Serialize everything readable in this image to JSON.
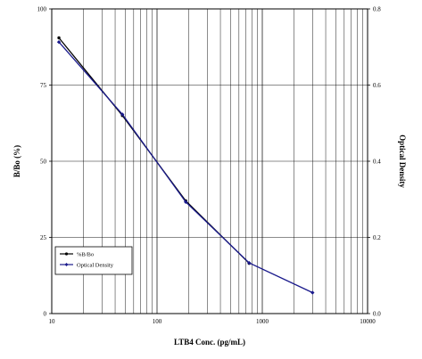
{
  "chart_data": {
    "type": "line",
    "title": "",
    "xlabel": "LTB4 Conc. (pg/mL)",
    "ylabel": "B/Bo (%)",
    "y2label": "Optical Density",
    "x_scale": "log",
    "xlim": [
      10,
      10000
    ],
    "ylim": [
      0,
      100
    ],
    "y2lim": [
      0,
      0.8
    ],
    "x_ticks": [
      "10",
      "100",
      "1000",
      "10000"
    ],
    "y_ticks": [
      "0",
      "25",
      "50",
      "75",
      "100"
    ],
    "y2_ticks": [
      "0.0",
      "0.2",
      "0.4",
      "0.6",
      "0.8"
    ],
    "grid": true,
    "legend_position": "bottom-left",
    "series": [
      {
        "name": "%B/Bo",
        "axis": "left",
        "color": "#000000",
        "x": [
          11.7,
          46.9,
          187.5,
          750
        ],
        "y": [
          90.5,
          65.0,
          37.0,
          16.5
        ]
      },
      {
        "name": "Optical Density",
        "axis": "right",
        "color": "#1a1a8c",
        "x": [
          11.7,
          46.9,
          187.5,
          750,
          3000
        ],
        "y": [
          0.713,
          0.523,
          0.293,
          0.133,
          0.055
        ]
      }
    ]
  }
}
